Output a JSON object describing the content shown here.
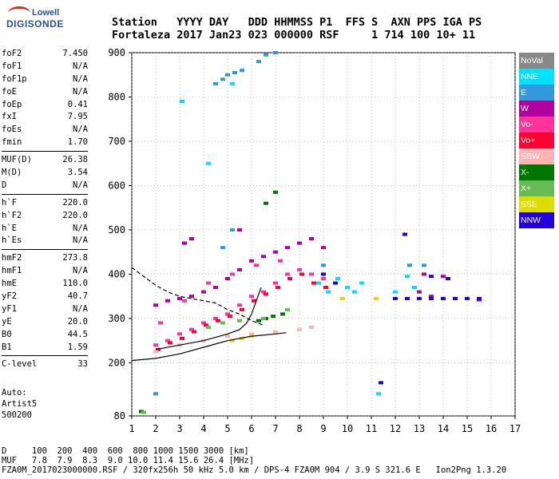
{
  "logo": {
    "line1": "Lowell",
    "line2": "DIGISONDE"
  },
  "header": {
    "line1": "Station   YYYY DAY   DDD HHMMSS P1  FFS S  AXN PPS IGA PS",
    "line2": "Fortaleza 2017 Jan23 023 000000 RSF     1 714 100 10+ 11"
  },
  "params": [
    [
      {
        "k": "foF2",
        "v": "7.450"
      },
      {
        "k": "foF1",
        "v": "N/A"
      },
      {
        "k": "foF1p",
        "v": "N/A"
      },
      {
        "k": "foE",
        "v": "N/A"
      },
      {
        "k": "foEp",
        "v": "0.41"
      },
      {
        "k": "fxI",
        "v": "7.95"
      },
      {
        "k": "foEs",
        "v": "N/A"
      },
      {
        "k": "fmin",
        "v": "1.70"
      }
    ],
    [
      {
        "k": "MUF(D)",
        "v": "26.38"
      },
      {
        "k": "M(D)",
        "v": "3.54"
      },
      {
        "k": "D",
        "v": "N/A"
      }
    ],
    [
      {
        "k": "h`F",
        "v": "220.0"
      },
      {
        "k": "h`F2",
        "v": "220.0"
      },
      {
        "k": "h`E",
        "v": "N/A"
      },
      {
        "k": "h`Es",
        "v": "N/A"
      }
    ],
    [
      {
        "k": "hmF2",
        "v": "273.8"
      },
      {
        "k": "hmF1",
        "v": "N/A"
      },
      {
        "k": "hmE",
        "v": "110.0"
      },
      {
        "k": "yF2",
        "v": "40.7"
      },
      {
        "k": "yF1",
        "v": "N/A"
      },
      {
        "k": "yE",
        "v": "20.0"
      },
      {
        "k": "B0",
        "v": "44.5"
      },
      {
        "k": "B1",
        "v": "1.59"
      }
    ],
    [
      {
        "k": "C-level",
        "v": "33"
      }
    ]
  ],
  "auto": {
    "line1": "Auto:",
    "line2": "Artist5",
    "line3": "500200"
  },
  "legend": [
    {
      "label": "NoVal",
      "color": "#888888"
    },
    {
      "label": "NNE",
      "color": "#00e0ff"
    },
    {
      "label": "E",
      "color": "#3399dd"
    },
    {
      "label": "W",
      "color": "#b000a0"
    },
    {
      "label": "Vo-",
      "color": "#ff3399"
    },
    {
      "label": "Vo+",
      "color": "#ff0033"
    },
    {
      "label": "SSW",
      "color": "#ffb3b3"
    },
    {
      "label": "X-",
      "color": "#007700"
    },
    {
      "label": "X+",
      "color": "#66bb55"
    },
    {
      "label": "SSE",
      "color": "#dddd00"
    },
    {
      "label": "NNW",
      "color": "#2200dd"
    }
  ],
  "footer": {
    "line1": "D     100  200  400  600  800 1000 1500 3000 [km]",
    "line2": "MUF   7.8  7.9  8.3  9.0 10.0 11.4 15.6 26.4 [MHz]",
    "line3": "FZA0M_2017023000000.RSF / 320fx256h 50 kHz 5.0 km / DPS-4 FZA0M 904 / 3.9 S 321.6 E   Ion2Png 1.3.20"
  },
  "chart_data": {
    "type": "scatter",
    "xlim": [
      1,
      17
    ],
    "ylim": [
      80,
      900
    ],
    "xticks": [
      1,
      2,
      3,
      4,
      5,
      6,
      7,
      8,
      9,
      10,
      11,
      12,
      13,
      14,
      15,
      16,
      17
    ],
    "yticks": [
      80,
      200,
      300,
      400,
      500,
      600,
      700,
      800,
      900
    ],
    "grid": true,
    "legend_position": "right",
    "series": [
      {
        "name": "Vo-",
        "color": "#ff3399",
        "points": [
          [
            2.0,
            240
          ],
          [
            2.5,
            250
          ],
          [
            3.0,
            265
          ],
          [
            3.5,
            275
          ],
          [
            4.0,
            290
          ],
          [
            4.5,
            300
          ],
          [
            5.0,
            310
          ],
          [
            5.5,
            330
          ],
          [
            6.0,
            350
          ],
          [
            6.5,
            360
          ],
          [
            7.0,
            380
          ],
          [
            7.5,
            400
          ],
          [
            8.0,
            410
          ],
          [
            8.5,
            400
          ],
          [
            9.0,
            390
          ],
          [
            2.2,
            290
          ],
          [
            3.2,
            340
          ],
          [
            4.2,
            380
          ],
          [
            5.2,
            400
          ],
          [
            6.2,
            420
          ],
          [
            7.2,
            430
          ]
        ]
      },
      {
        "name": "Vo+",
        "color": "#ff0033",
        "points": [
          [
            2.1,
            230
          ],
          [
            2.6,
            245
          ],
          [
            3.1,
            255
          ],
          [
            3.6,
            270
          ],
          [
            4.1,
            285
          ],
          [
            4.6,
            295
          ],
          [
            5.1,
            305
          ],
          [
            5.6,
            320
          ],
          [
            6.1,
            340
          ],
          [
            6.6,
            355
          ],
          [
            7.1,
            370
          ],
          [
            7.6,
            390
          ],
          [
            8.1,
            400
          ],
          [
            8.6,
            380
          ],
          [
            9.1,
            370
          ]
        ]
      },
      {
        "name": "W",
        "color": "#b000a0",
        "points": [
          [
            2.0,
            330
          ],
          [
            2.5,
            340
          ],
          [
            3.0,
            345
          ],
          [
            3.5,
            350
          ],
          [
            4.0,
            360
          ],
          [
            4.5,
            370
          ],
          [
            5.0,
            390
          ],
          [
            5.5,
            410
          ],
          [
            6.0,
            430
          ],
          [
            6.5,
            440
          ],
          [
            7.0,
            450
          ],
          [
            7.5,
            460
          ],
          [
            8.0,
            470
          ],
          [
            8.5,
            480
          ],
          [
            9.0,
            460
          ],
          [
            3.2,
            470
          ],
          [
            3.5,
            480
          ],
          [
            5.5,
            500
          ],
          [
            13.0,
            360
          ],
          [
            13.5,
            350
          ],
          [
            14.0,
            345
          ],
          [
            14.5,
            345
          ],
          [
            15.0,
            345
          ],
          [
            15.5,
            342
          ],
          [
            13.2,
            400
          ],
          [
            14.0,
            395
          ]
        ]
      },
      {
        "name": "NNE",
        "color": "#00e0ff",
        "points": [
          [
            8.8,
            380
          ],
          [
            9.2,
            360
          ],
          [
            9.6,
            390
          ],
          [
            10.0,
            370
          ],
          [
            10.3,
            360
          ],
          [
            10.6,
            380
          ],
          [
            12.0,
            360
          ],
          [
            12.5,
            395
          ],
          [
            12.8,
            370
          ],
          [
            11.3,
            130
          ],
          [
            5.2,
            830
          ],
          [
            5.6,
            860
          ],
          [
            4.2,
            650
          ],
          [
            3.1,
            790
          ]
        ]
      },
      {
        "name": "E",
        "color": "#3399dd",
        "points": [
          [
            4.5,
            830
          ],
          [
            4.8,
            840
          ],
          [
            5.0,
            850
          ],
          [
            5.3,
            855
          ],
          [
            5.6,
            860
          ],
          [
            6.3,
            880
          ],
          [
            6.6,
            895
          ],
          [
            7.0,
            900
          ],
          [
            5.2,
            500
          ],
          [
            4.8,
            460
          ],
          [
            2.0,
            130
          ],
          [
            9.0,
            420
          ],
          [
            12.6,
            420
          ],
          [
            13.2,
            420
          ]
        ]
      },
      {
        "name": "SSW",
        "color": "#ffb3b3",
        "points": [
          [
            2.0,
            225
          ],
          [
            3.0,
            240
          ],
          [
            4.0,
            250
          ],
          [
            5.0,
            260
          ],
          [
            6.0,
            265
          ],
          [
            7.0,
            270
          ],
          [
            8.0,
            275
          ],
          [
            8.5,
            280
          ]
        ]
      },
      {
        "name": "X-",
        "color": "#007700",
        "points": [
          [
            6.3,
            295
          ],
          [
            6.6,
            300
          ],
          [
            6.9,
            305
          ],
          [
            7.3,
            310
          ],
          [
            6.6,
            560
          ],
          [
            7.0,
            585
          ],
          [
            1.4,
            90
          ]
        ]
      },
      {
        "name": "X+",
        "color": "#66bb55",
        "points": [
          [
            4.2,
            280
          ],
          [
            4.8,
            290
          ],
          [
            5.5,
            295
          ],
          [
            6.5,
            300
          ],
          [
            7.5,
            320
          ],
          [
            1.5,
            88
          ]
        ]
      },
      {
        "name": "SSE",
        "color": "#dddd00",
        "points": [
          [
            5.2,
            250
          ],
          [
            5.6,
            255
          ],
          [
            6.0,
            260
          ],
          [
            9.8,
            345
          ],
          [
            11.2,
            345
          ]
        ]
      },
      {
        "name": "NNW",
        "color": "#2200dd",
        "points": [
          [
            9.0,
            400
          ],
          [
            9.5,
            380
          ],
          [
            12.0,
            345
          ],
          [
            12.5,
            345
          ],
          [
            13.0,
            345
          ],
          [
            13.5,
            345
          ],
          [
            14.0,
            345
          ],
          [
            14.5,
            345
          ],
          [
            15.0,
            345
          ],
          [
            15.5,
            345
          ],
          [
            13.5,
            395
          ],
          [
            14.2,
            390
          ],
          [
            11.4,
            155
          ],
          [
            12.4,
            490
          ]
        ]
      }
    ],
    "curves": [
      {
        "style": "solid",
        "color": "#000000",
        "points": [
          [
            1.0,
            205
          ],
          [
            2.0,
            210
          ],
          [
            3.0,
            220
          ],
          [
            4.0,
            235
          ],
          [
            5.0,
            250
          ],
          [
            6.0,
            260
          ],
          [
            7.0,
            265
          ],
          [
            7.45,
            268
          ]
        ]
      },
      {
        "style": "solid",
        "color": "#000000",
        "points": [
          [
            2.0,
            230
          ],
          [
            3.0,
            240
          ],
          [
            4.0,
            250
          ],
          [
            5.0,
            265
          ],
          [
            5.5,
            275
          ],
          [
            5.8,
            290
          ],
          [
            6.0,
            310
          ],
          [
            6.2,
            340
          ],
          [
            6.4,
            370
          ]
        ]
      },
      {
        "style": "dashed",
        "color": "#000000",
        "points": [
          [
            1.0,
            415
          ],
          [
            1.5,
            395
          ],
          [
            2.0,
            375
          ],
          [
            2.5,
            360
          ],
          [
            3.0,
            350
          ],
          [
            3.5,
            345
          ],
          [
            4.0,
            340
          ],
          [
            4.5,
            335
          ],
          [
            5.0,
            320
          ],
          [
            5.5,
            310
          ],
          [
            6.0,
            295
          ],
          [
            6.5,
            285
          ]
        ]
      }
    ]
  }
}
